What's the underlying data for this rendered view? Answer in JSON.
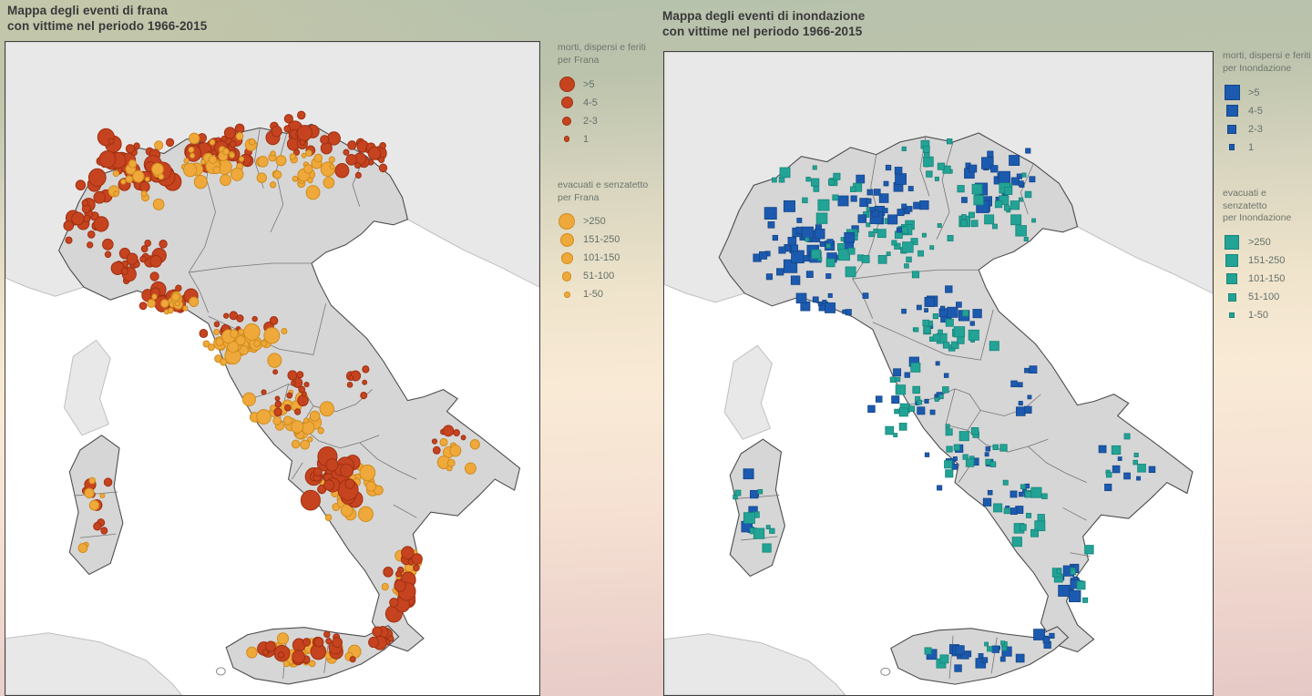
{
  "titles": {
    "left": [
      "Mappa degli eventi di frana",
      "con vittime nel periodo 1966-2015"
    ],
    "right": [
      "Mappa degli eventi di inondazione",
      "con vittime nel periodo 1966-2015"
    ]
  },
  "legends": {
    "frana_morti": {
      "title": [
        "morti, dispersi e feriti",
        "per Frana"
      ],
      "shape": "circle",
      "fill": "#c6431f",
      "stroke": "#9e3012",
      "items": [
        {
          "label": ">5",
          "size": 17
        },
        {
          "label": "4-5",
          "size": 13
        },
        {
          "label": "2-3",
          "size": 10
        },
        {
          "label": "1",
          "size": 6.5
        }
      ]
    },
    "frana_evacuati": {
      "title": [
        "evacuati e senzatetto",
        "per Frana"
      ],
      "shape": "circle",
      "fill": "#efa83a",
      "stroke": "#cf8c1f",
      "items": [
        {
          "label": ">250",
          "size": 18
        },
        {
          "label": "151-250",
          "size": 15
        },
        {
          "label": "101-150",
          "size": 13
        },
        {
          "label": "51-100",
          "size": 10.5
        },
        {
          "label": "1-50",
          "size": 7
        }
      ]
    },
    "inondazione_morti": {
      "title": [
        "morti, dispersi e feriti",
        "per Inondazione"
      ],
      "shape": "square",
      "fill": "#1c5ab0",
      "stroke": "#134687",
      "items": [
        {
          "label": ">5",
          "size": 17
        },
        {
          "label": "4-5",
          "size": 13
        },
        {
          "label": "2-3",
          "size": 10
        },
        {
          "label": "1",
          "size": 6.5
        }
      ]
    },
    "inondazione_evacuati": {
      "title": [
        "evacuati e senzatetto",
        "per Inondazione"
      ],
      "shape": "square",
      "fill": "#22a396",
      "stroke": "#17857b",
      "items": [
        {
          "label": ">250",
          "size": 16
        },
        {
          "label": "151-250",
          "size": 14
        },
        {
          "label": "101-150",
          "size": 12
        },
        {
          "label": "51-100",
          "size": 9
        },
        {
          "label": "1-50",
          "size": 6
        }
      ]
    }
  },
  "map_data": {
    "period": "1966-2015",
    "cluster_format": [
      "class_index",
      "cx",
      "cy",
      "spread_x",
      "spread_y",
      "count",
      "size_min",
      "size_max"
    ],
    "frana": {
      "marker": "circle",
      "seed": 7,
      "class_order": [
        "morti",
        "evacuati"
      ],
      "classes": {
        "morti": {
          "fill": "#c6431f",
          "stroke": "#9e3012"
        },
        "evacuati": {
          "fill": "#efa83a",
          "stroke": "#cf8c1f"
        }
      },
      "clusters": [
        [
          0,
          140,
          135,
          60,
          32,
          42,
          3,
          10
        ],
        [
          0,
          92,
          195,
          26,
          32,
          18,
          3,
          9
        ],
        [
          0,
          240,
          115,
          50,
          26,
          34,
          3,
          10
        ],
        [
          0,
          330,
          100,
          45,
          22,
          26,
          3,
          9
        ],
        [
          0,
          400,
          125,
          32,
          22,
          18,
          3,
          8
        ],
        [
          1,
          240,
          130,
          85,
          28,
          38,
          2.5,
          8
        ],
        [
          1,
          150,
          150,
          50,
          30,
          16,
          2.5,
          8
        ],
        [
          1,
          340,
          140,
          45,
          28,
          22,
          2.5,
          8
        ],
        [
          0,
          150,
          240,
          42,
          26,
          22,
          3,
          8
        ],
        [
          0,
          185,
          282,
          48,
          14,
          24,
          3,
          9
        ],
        [
          1,
          190,
          285,
          42,
          13,
          14,
          2.5,
          7
        ],
        [
          0,
          262,
          315,
          48,
          20,
          16,
          2.5,
          7
        ],
        [
          1,
          272,
          330,
          55,
          26,
          40,
          3,
          9
        ],
        [
          1,
          320,
          420,
          48,
          40,
          30,
          2.5,
          8
        ],
        [
          0,
          320,
          390,
          42,
          38,
          16,
          2.5,
          7
        ],
        [
          0,
          395,
          365,
          20,
          30,
          8,
          2.5,
          6
        ],
        [
          1,
          500,
          455,
          38,
          30,
          10,
          2.5,
          7
        ],
        [
          0,
          495,
          435,
          35,
          25,
          6,
          2.5,
          7
        ],
        [
          1,
          385,
          495,
          40,
          32,
          26,
          3,
          9
        ],
        [
          0,
          370,
          478,
          30,
          26,
          26,
          4,
          12
        ],
        [
          1,
          448,
          588,
          22,
          42,
          16,
          2.5,
          8
        ],
        [
          0,
          448,
          595,
          20,
          42,
          20,
          3,
          10
        ],
        [
          1,
          335,
          670,
          70,
          18,
          26,
          3,
          9
        ],
        [
          0,
          330,
          665,
          68,
          18,
          24,
          3,
          10
        ],
        [
          0,
          424,
          652,
          14,
          12,
          10,
          3,
          9
        ],
        [
          0,
          100,
          505,
          24,
          52,
          8,
          3,
          8
        ],
        [
          1,
          100,
          515,
          22,
          48,
          6,
          2.5,
          6
        ]
      ]
    },
    "inondazione": {
      "marker": "square",
      "seed": 11,
      "class_order": [
        "morti",
        "evacuati"
      ],
      "classes": {
        "morti": {
          "fill": "#1c5ab0",
          "stroke": "#134687"
        },
        "evacuati": {
          "fill": "#22a396",
          "stroke": "#17857b"
        }
      },
      "clusters": [
        [
          0,
          160,
          210,
          65,
          55,
          40,
          5,
          15
        ],
        [
          1,
          235,
          215,
          85,
          55,
          45,
          4,
          13
        ],
        [
          0,
          250,
          170,
          50,
          45,
          28,
          5,
          14
        ],
        [
          1,
          300,
          120,
          60,
          30,
          12,
          4,
          11
        ],
        [
          0,
          365,
          140,
          55,
          38,
          26,
          5,
          14
        ],
        [
          1,
          370,
          175,
          55,
          42,
          26,
          4,
          12
        ],
        [
          1,
          160,
          140,
          60,
          30,
          14,
          4,
          11
        ],
        [
          0,
          185,
          280,
          48,
          14,
          12,
          4,
          12
        ],
        [
          0,
          300,
          290,
          55,
          28,
          18,
          4,
          12
        ],
        [
          1,
          315,
          310,
          55,
          25,
          22,
          4,
          12
        ],
        [
          0,
          268,
          380,
          45,
          40,
          14,
          4,
          12
        ],
        [
          1,
          270,
          390,
          48,
          42,
          18,
          4,
          12
        ],
        [
          0,
          320,
          450,
          42,
          38,
          10,
          4,
          12
        ],
        [
          1,
          330,
          450,
          48,
          40,
          16,
          4,
          12
        ],
        [
          0,
          395,
          370,
          20,
          38,
          8,
          4,
          11
        ],
        [
          0,
          380,
          500,
          35,
          30,
          10,
          4,
          12
        ],
        [
          1,
          395,
          515,
          42,
          36,
          14,
          4,
          12
        ],
        [
          0,
          500,
          460,
          38,
          28,
          8,
          4,
          11
        ],
        [
          1,
          488,
          455,
          45,
          35,
          7,
          4,
          10
        ],
        [
          0,
          448,
          595,
          20,
          42,
          12,
          4,
          13
        ],
        [
          1,
          448,
          588,
          22,
          42,
          8,
          4,
          11
        ],
        [
          0,
          335,
          668,
          70,
          18,
          16,
          4,
          13
        ],
        [
          1,
          335,
          670,
          68,
          18,
          8,
          4,
          11
        ],
        [
          0,
          420,
          652,
          14,
          12,
          5,
          4,
          12
        ],
        [
          0,
          100,
          505,
          26,
          55,
          8,
          4,
          12
        ],
        [
          1,
          96,
          515,
          26,
          52,
          12,
          4,
          12
        ]
      ]
    }
  },
  "colors": {
    "background_top": "#b5c1ac",
    "background_mid": "#f9ead6",
    "background_bottom": "#e5c9c6",
    "panel_bg": "#ffffff",
    "panel_border": "#404040",
    "italy_fill": "#d6d6d6",
    "neighbor_fill": "#e8e8e8",
    "title_text": "#393939",
    "legend_text": "#6d756c"
  }
}
